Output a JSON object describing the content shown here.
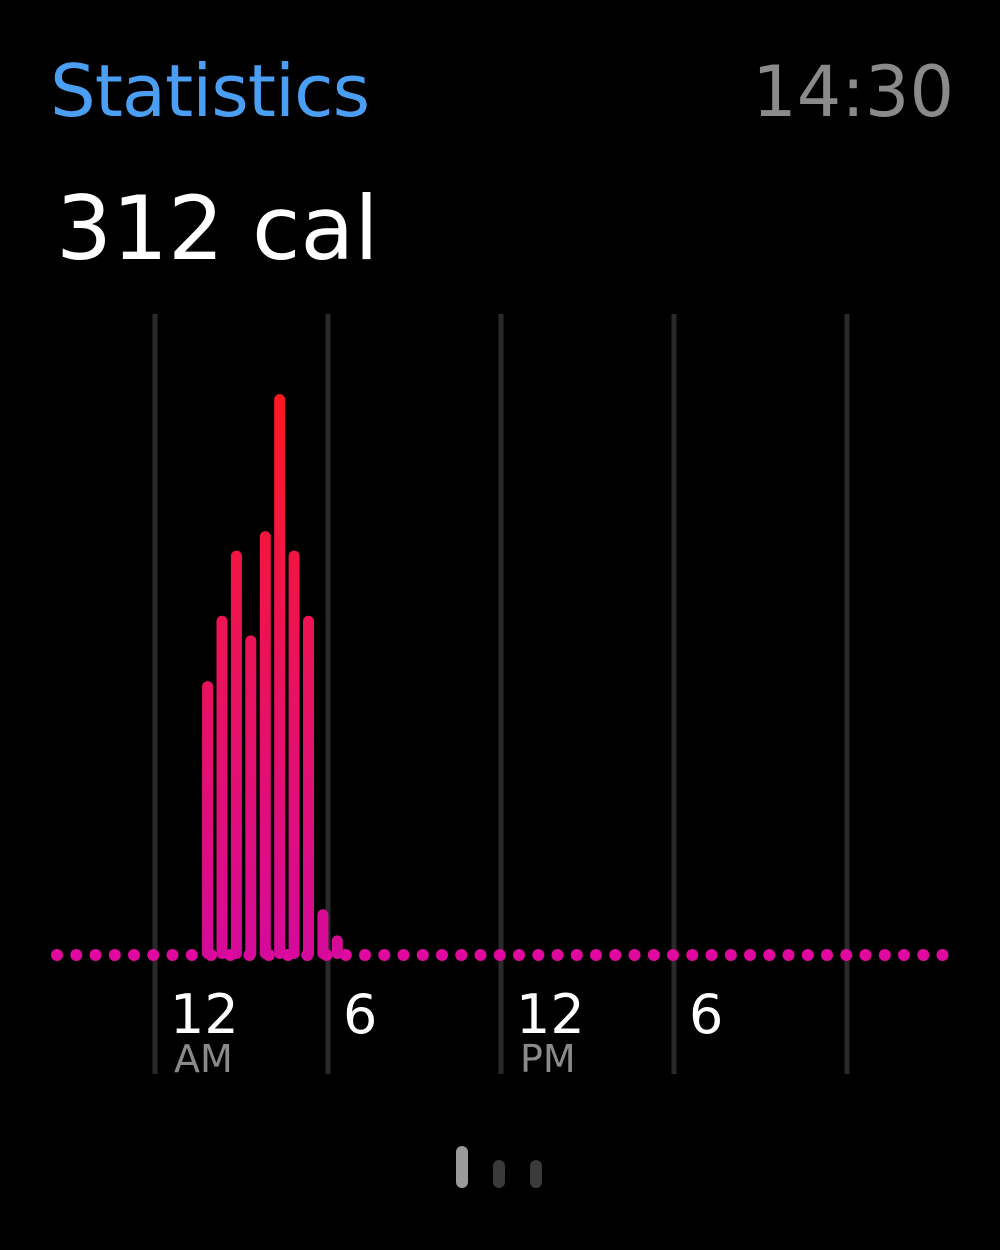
{
  "header": {
    "title": "Statistics",
    "time": "14:30"
  },
  "summary": {
    "calories": "312 cal"
  },
  "colors": {
    "title": "#4a9ff5",
    "time": "#8a8a8a",
    "bar_low": "#d60a9a",
    "bar_high": "#ff1a1a",
    "dot": "#e0089e",
    "grid": "#2a2a2a",
    "tick_sub": "#8a8a8a"
  },
  "chart_data": {
    "type": "bar",
    "x_unit": "hour of day",
    "bin_minutes": 30,
    "x_range": [
      0,
      24
    ],
    "bars": [
      {
        "hour": 2.5,
        "value": 42
      },
      {
        "hour": 3.0,
        "value": 52
      },
      {
        "hour": 3.5,
        "value": 62
      },
      {
        "hour": 4.0,
        "value": 49
      },
      {
        "hour": 4.5,
        "value": 65
      },
      {
        "hour": 5.0,
        "value": 86
      },
      {
        "hour": 5.5,
        "value": 62
      },
      {
        "hour": 6.0,
        "value": 52
      },
      {
        "hour": 6.5,
        "value": 7
      },
      {
        "hour": 7.0,
        "value": 3
      }
    ],
    "ylim": [
      0,
      90
    ],
    "x_ticks": [
      {
        "hour": 0,
        "label": "12",
        "sublabel": "AM"
      },
      {
        "hour": 6,
        "label": "6",
        "sublabel": ""
      },
      {
        "hour": 12,
        "label": "12",
        "sublabel": "PM"
      },
      {
        "hour": 18,
        "label": "6",
        "sublabel": ""
      }
    ],
    "gridline_hours": [
      0,
      6,
      12,
      18,
      24
    ],
    "baseline_dots": "dotted",
    "grid": true,
    "legend": "none"
  },
  "pager": {
    "pages": 3,
    "active_index": 0
  }
}
